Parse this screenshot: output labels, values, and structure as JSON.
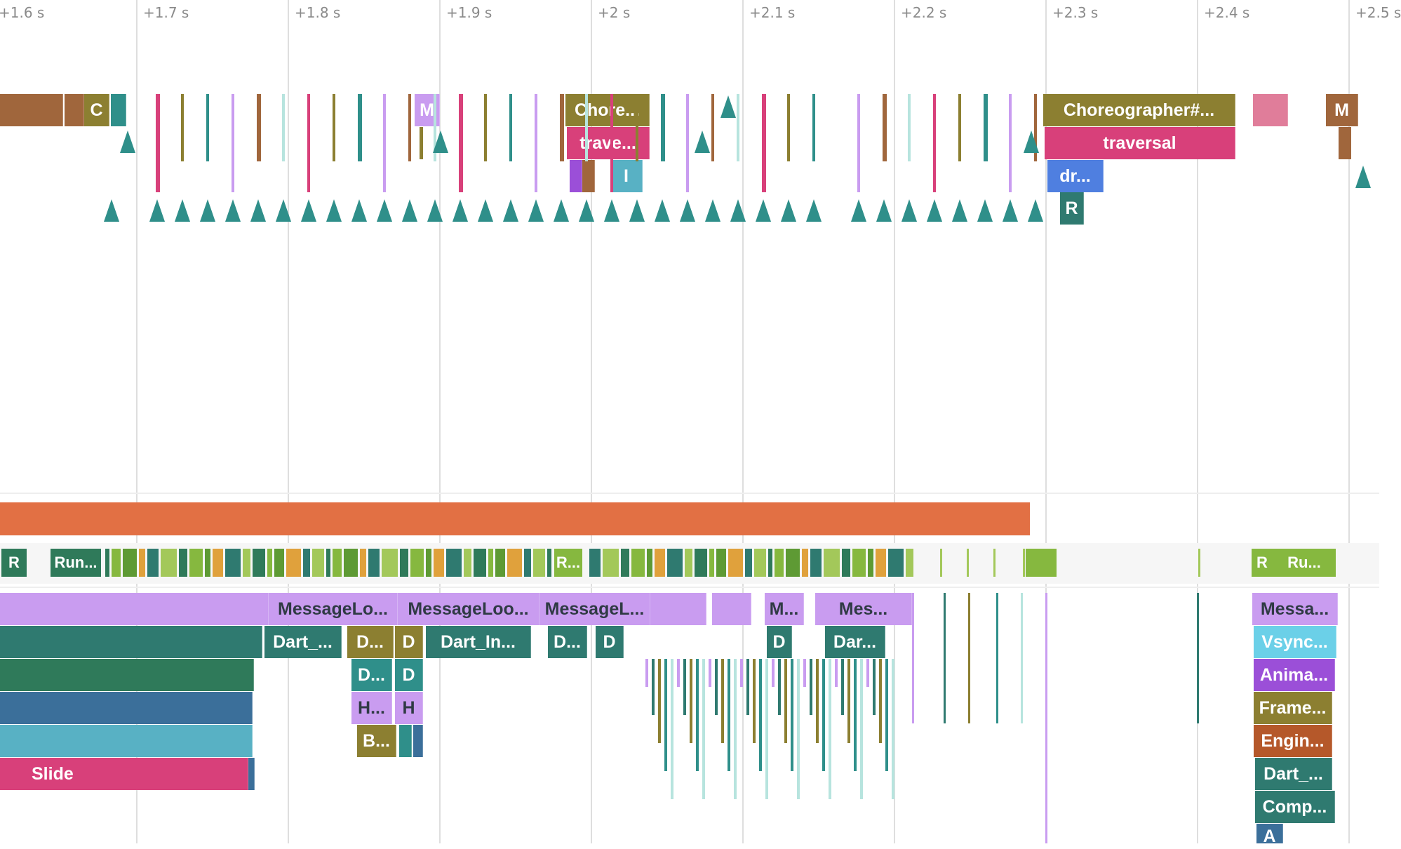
{
  "timeline": {
    "ticks": [
      "+1.6 s",
      "+1.7 s",
      "+1.8 s",
      "+1.9 s",
      "+2 s",
      "+2.1 s",
      "+2.2 s",
      "+2.3 s",
      "+2.4 s",
      "+2.5 s"
    ]
  },
  "colors": {
    "brown": "#a0663c",
    "olive": "#8c7f31",
    "teal_dark": "#2f7a70",
    "teal": "#2f8f8a",
    "green_dark": "#2f7a5a",
    "blue_dark": "#3b6f9a",
    "cyan": "#58b1c4",
    "pink": "#d8407a",
    "lavender": "#c99cf0",
    "purple": "#9b4fd8",
    "blue": "#4f7fe0",
    "lime": "#86b83f",
    "orange": "#e27044",
    "rust": "#b5582a",
    "light_blue": "#6bd0e8"
  },
  "main_thread": {
    "top_row": {
      "C": "C",
      "M1": "M",
      "choreographer_short": "Chore...",
      "choreographer_full": "Choreographer#...",
      "M2": "M"
    },
    "row2": {
      "traversal_short": "trave...",
      "traversal_full": "traversal"
    },
    "row3": {
      "I": "I",
      "draw_short": "dr..."
    },
    "row4": {
      "R": "R"
    }
  },
  "cpu_state": {
    "R1": "R",
    "run1": "Run...",
    "R2": "R...",
    "R3": "R",
    "run2": "Ru..."
  },
  "ui_thread": {
    "row1": {
      "msg1": "MessageLo...",
      "msg2": "MessageLoo...",
      "msg3": "MessageL...",
      "msg4": "M...",
      "msg5": "Mes...",
      "msg6": "Messa..."
    },
    "row2": {
      "dart1": "Dart_...",
      "d1": "D...",
      "d2": "D",
      "dart2": "Dart_In...",
      "d3": "D...",
      "d4": "D",
      "d5": "D",
      "dart3": "Dar...",
      "vsync": "Vsync..."
    },
    "row3": {
      "d1": "D...",
      "d2": "D",
      "anim": "Anima..."
    },
    "row4": {
      "h1": "H...",
      "h2": "H",
      "frame": "Frame..."
    },
    "row5": {
      "b1": "B...",
      "engine": "Engin..."
    },
    "row6": {
      "slide": "Slide",
      "dart4": "Dart_..."
    },
    "row7": {
      "comp": "Comp..."
    },
    "row8": {
      "a": "A"
    }
  }
}
